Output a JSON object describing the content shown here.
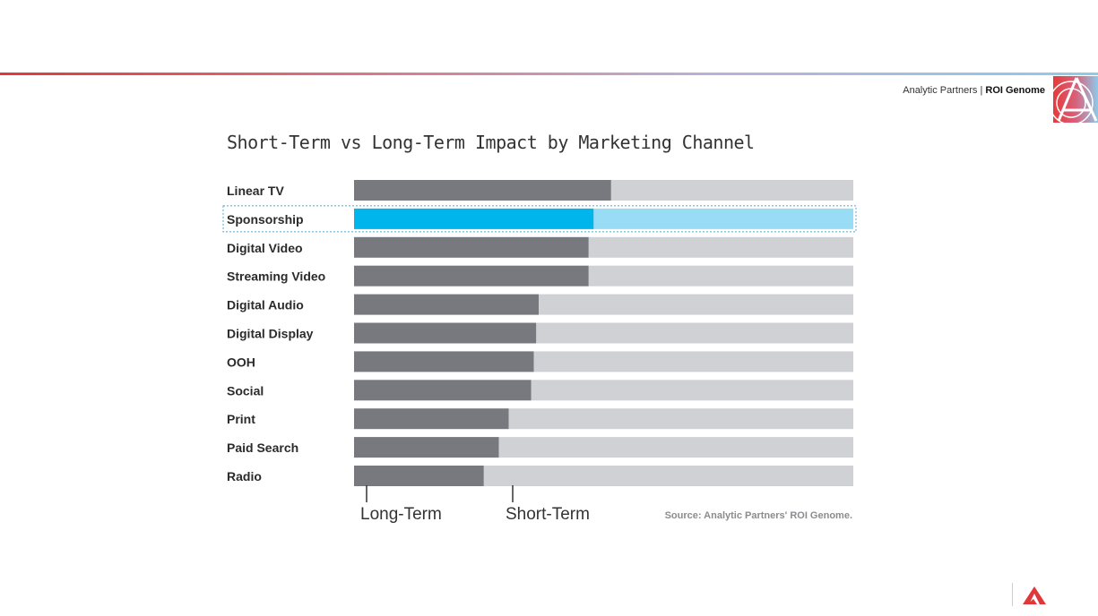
{
  "header": {
    "brand_company": "Analytic Partners",
    "brand_separator": " | ",
    "brand_product": "ROI Genome"
  },
  "colors": {
    "long_term": "#77797f",
    "short_term": "#cfd1d5",
    "highlight_long": "#00b5ec",
    "highlight_short": "#99dcf6",
    "accent": "#e0383a"
  },
  "chart_data": {
    "type": "bar",
    "orientation": "horizontal",
    "stacked": true,
    "normalized": true,
    "title": "Short-Term vs Long-Term Impact by Marketing Channel",
    "categories": [
      "Linear TV",
      "Sponsorship",
      "Digital Video",
      "Streaming Video",
      "Digital Audio",
      "Digital Display",
      "OOH",
      "Social",
      "Print",
      "Paid Search",
      "Radio"
    ],
    "series": [
      {
        "name": "Long-Term",
        "values": [
          51.5,
          48,
          47,
          47,
          37,
          36.5,
          36,
          35.5,
          31,
          29,
          26
        ]
      },
      {
        "name": "Short-Term",
        "values": [
          48.5,
          52,
          53,
          53,
          63,
          63.5,
          64,
          64.5,
          69,
          71,
          74
        ]
      }
    ],
    "highlighted_category": "Sponsorship",
    "xlim": [
      0,
      100
    ],
    "legend": [
      "Long-Term",
      "Short-Term"
    ],
    "source": "Source: Analytic Partners' ROI Genome."
  }
}
